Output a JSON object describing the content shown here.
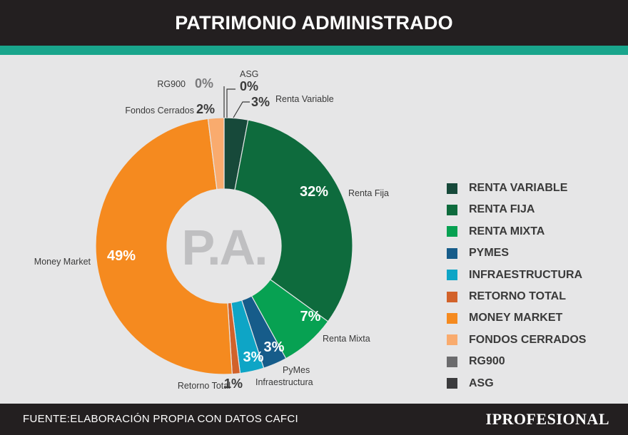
{
  "title": "PATRIMONIO ADMINISTRADO",
  "center_label": "P.A.",
  "source": "FUENTE:ELABORACIÓN PROPIA CON DATOS CAFCI",
  "brand": "IPROFESIONAL",
  "colors": {
    "header_bg": "#231f20",
    "accent_bar": "#19a58c",
    "background": "#e6e6e7"
  },
  "chart_data": {
    "type": "pie",
    "donut": true,
    "title": "PATRIMONIO ADMINISTRADO",
    "legend_position": "right",
    "series": [
      {
        "name": "Renta Variable",
        "legend": "RENTA VARIABLE",
        "value": 3,
        "label": "3%",
        "color": "#17493a"
      },
      {
        "name": "Renta Fija",
        "legend": "RENTA FIJA",
        "value": 32,
        "label": "32%",
        "color": "#0e6b3d"
      },
      {
        "name": "Renta Mixta",
        "legend": "RENTA MIXTA",
        "value": 7,
        "label": "7%",
        "color": "#07a152"
      },
      {
        "name": "PyMes",
        "legend": "PYMES",
        "value": 3,
        "label": "3%",
        "color": "#165c8a"
      },
      {
        "name": "Infraestructura",
        "legend": "INFRAESTRUCTURA",
        "value": 3,
        "label": "3%",
        "color": "#0ea5c6"
      },
      {
        "name": "Retorno Total",
        "legend": "RETORNO TOTAL",
        "value": 1,
        "label": "1%",
        "color": "#d2622a"
      },
      {
        "name": "Money Market",
        "legend": "MONEY MARKET",
        "value": 49,
        "label": "49%",
        "color": "#f58a1f"
      },
      {
        "name": "Fondos Cerrados",
        "legend": "FONDOS CERRADOS",
        "value": 2,
        "label": "2%",
        "color": "#f9ab6e"
      },
      {
        "name": "RG900",
        "legend": "RG900",
        "value": 0,
        "label": "0%",
        "color": "#6b6b6d"
      },
      {
        "name": "ASG",
        "legend": "ASG",
        "value": 0,
        "label": "0%",
        "color": "#3b3b3d"
      }
    ]
  }
}
